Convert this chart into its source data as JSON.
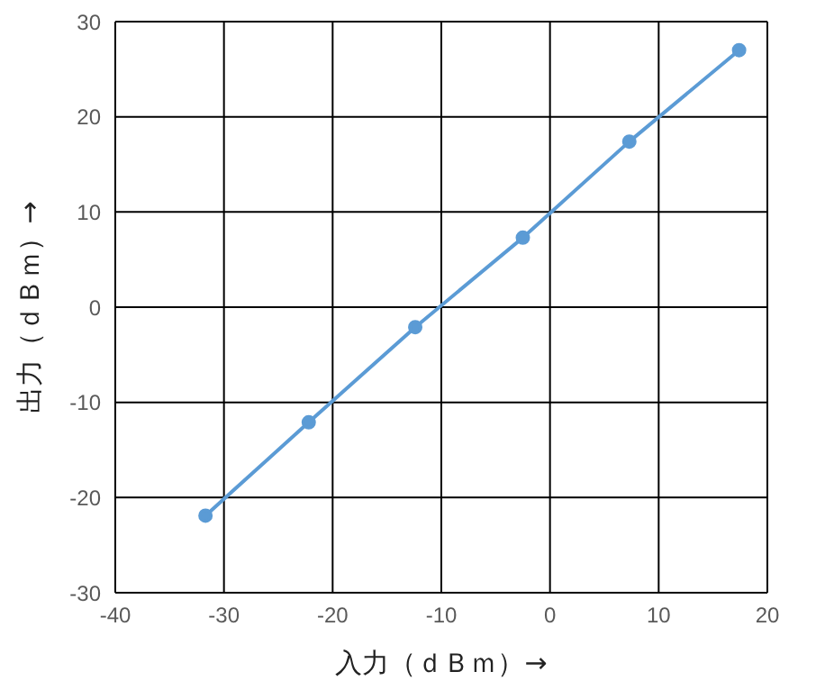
{
  "chart_data": {
    "type": "line",
    "xlabel": "入力（ｄＢｍ）→",
    "ylabel": "出力（ｄＢｍ）→",
    "x": [
      -31.7,
      -22.2,
      -12.4,
      -2.5,
      7.3,
      17.4
    ],
    "series": [
      {
        "color": "#5b9bd5",
        "values": [
          -21.9,
          -12.1,
          -2.1,
          7.3,
          17.4,
          27.0
        ]
      }
    ],
    "xlim": [
      -40,
      20
    ],
    "xticks": [
      -40,
      -30,
      -20,
      -10,
      0,
      10,
      20
    ],
    "ylim": [
      -30,
      30
    ],
    "yticks": [
      -30,
      -20,
      -10,
      0,
      10,
      20,
      30
    ],
    "grid": true,
    "marker": "circle",
    "line_style": "solid",
    "legend": false
  }
}
